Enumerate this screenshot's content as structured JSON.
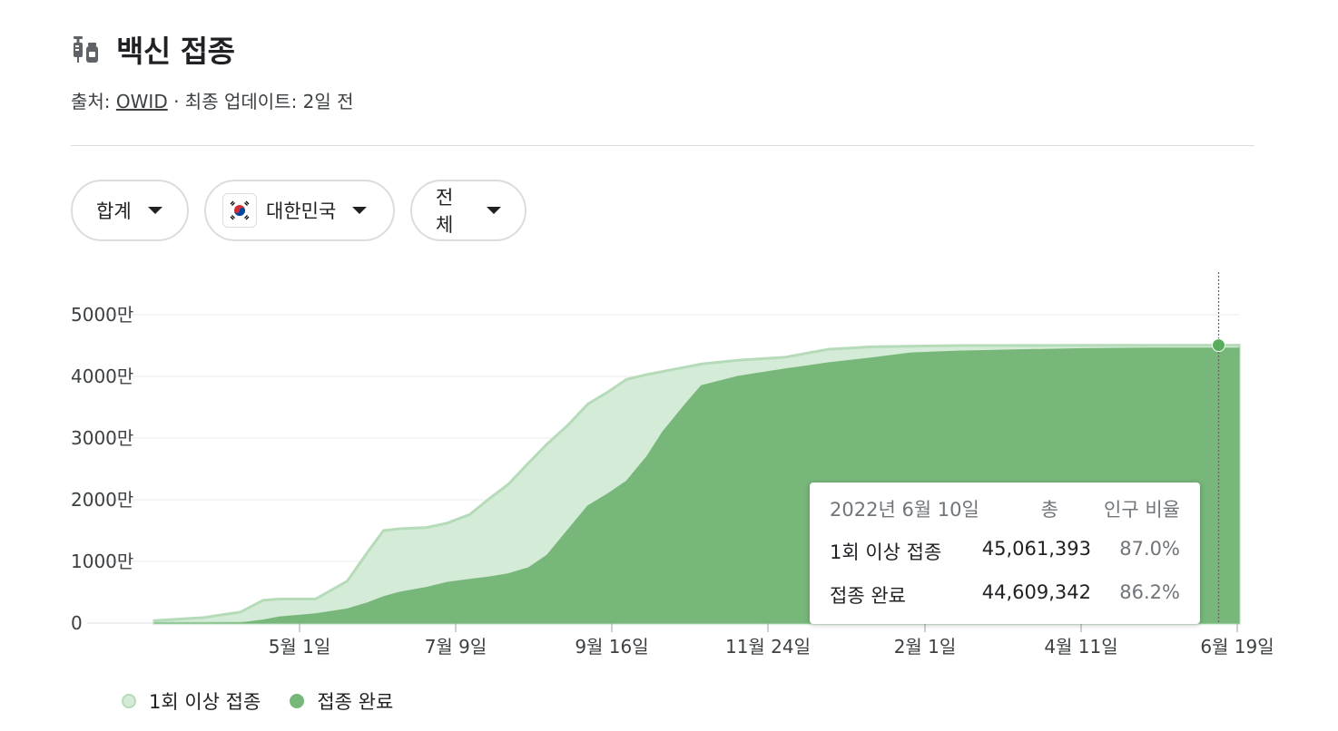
{
  "header": {
    "title": "백신 접종",
    "subtitle_prefix": "출처: ",
    "source": "OWID",
    "subtitle_suffix": " · 최종 업데이트: 2일 전",
    "icon": "syringe-vial-icon"
  },
  "filters": [
    {
      "label": "합계",
      "icon": "caret-down-icon"
    },
    {
      "label": "대한민국",
      "flag": "south-korea-flag-icon",
      "icon": "caret-down-icon"
    },
    {
      "label": "전체",
      "icon": "caret-down-icon"
    }
  ],
  "tooltip": {
    "date": "2022년 6월 10일",
    "col_total": "총",
    "col_ratio": "인구 비율",
    "rows": [
      {
        "label": "1회 이상 접종",
        "total": "45,061,393",
        "ratio": "87.0%"
      },
      {
        "label": "접종 완료",
        "total": "44,609,342",
        "ratio": "86.2%"
      }
    ]
  },
  "legend": [
    {
      "label": "1회 이상 접종",
      "color": "#d4ebd7",
      "border": "#b5dbb9"
    },
    {
      "label": "접종 완료",
      "color": "#77b779",
      "border": "#77b779"
    }
  ],
  "chart_data": {
    "type": "area",
    "x_tick_labels": [
      "5월 1일",
      "7월 9일",
      "9월 16일",
      "11월 24일",
      "2월 1일",
      "4월 11일",
      "6월 19일"
    ],
    "y_tick_labels": [
      "0",
      "1000만",
      "2000만",
      "3000만",
      "4000만",
      "5000만"
    ],
    "ylim": [
      0,
      50000000
    ],
    "x_start": "2021-02-26",
    "x_end": "2022-06-19",
    "x_dates": [
      "2021-02-26",
      "2021-03-20",
      "2021-04-05",
      "2021-04-15",
      "2021-04-22",
      "2021-05-08",
      "2021-05-22",
      "2021-05-31",
      "2021-06-07",
      "2021-06-14",
      "2021-06-26",
      "2021-07-05",
      "2021-07-15",
      "2021-07-24",
      "2021-08-01",
      "2021-08-10",
      "2021-08-18",
      "2021-08-27",
      "2021-09-05",
      "2021-09-14",
      "2021-09-22",
      "2021-10-01",
      "2021-10-08",
      "2021-10-18",
      "2021-10-25",
      "2021-11-10",
      "2021-12-01",
      "2021-12-20",
      "2022-01-08",
      "2022-01-25",
      "2022-02-15",
      "2022-03-12",
      "2022-04-11",
      "2022-05-10",
      "2022-06-10",
      "2022-06-19"
    ],
    "series": [
      {
        "name": "1회 이상 접종",
        "color": "#d4ebd7",
        "values": [
          0.4,
          0.9,
          1.8,
          3.7,
          3.9,
          3.9,
          6.8,
          11.5,
          15.0,
          15.3,
          15.5,
          16.2,
          17.6,
          20.3,
          22.5,
          26.0,
          29.0,
          32.0,
          35.5,
          37.5,
          39.5,
          40.3,
          40.8,
          41.5,
          42.0,
          42.6,
          43.1,
          44.4,
          44.8,
          44.9,
          45.0,
          45.02,
          45.04,
          45.05,
          45.06,
          45.06
        ]
      },
      {
        "name": "접종 완료",
        "color": "#77b779",
        "values": [
          0.0,
          0.0,
          0.05,
          0.5,
          1.0,
          1.5,
          2.3,
          3.3,
          4.3,
          5.0,
          5.8,
          6.6,
          7.1,
          7.5,
          8.0,
          9.0,
          11.0,
          15.0,
          19.0,
          21.0,
          23.0,
          27.0,
          31.0,
          35.5,
          38.5,
          40.0,
          41.2,
          42.2,
          43.0,
          43.8,
          44.1,
          44.3,
          44.5,
          44.6,
          44.61,
          44.61
        ]
      }
    ],
    "highlight_date": "2022-06-10",
    "grid": true
  }
}
